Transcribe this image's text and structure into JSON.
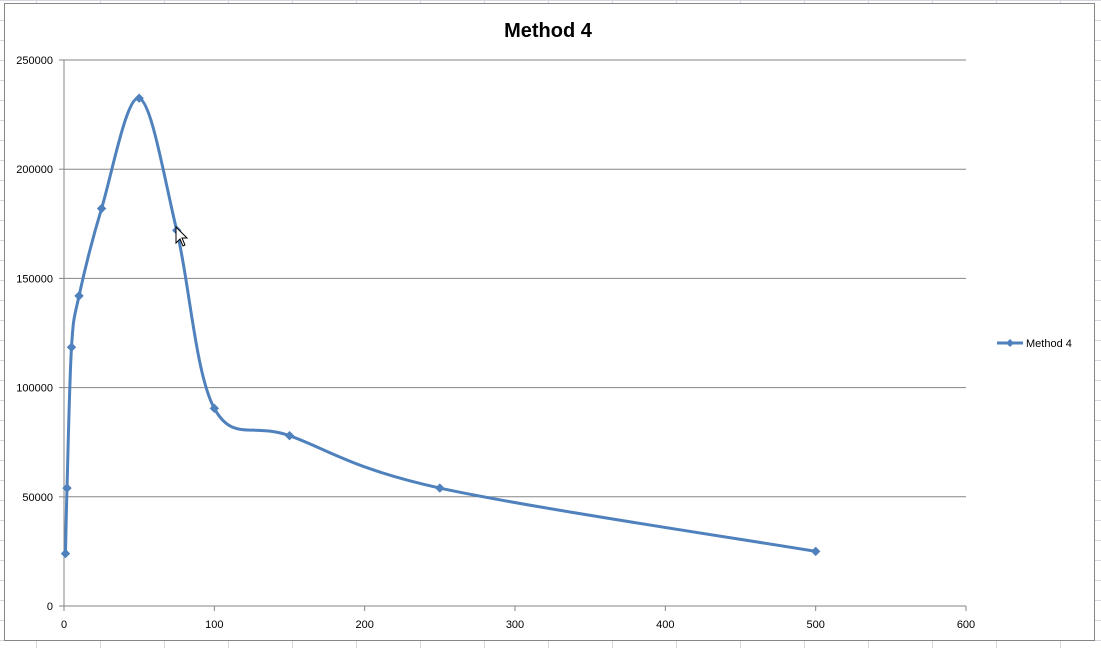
{
  "chart_data": {
    "type": "line",
    "title": "Method 4",
    "xlabel": "",
    "ylabel": "",
    "xlim": [
      0,
      600
    ],
    "ylim": [
      0,
      250000
    ],
    "x_ticks": [
      0,
      100,
      200,
      300,
      400,
      500,
      600
    ],
    "y_ticks": [
      0,
      50000,
      100000,
      150000,
      200000,
      250000
    ],
    "grid": "horizontal",
    "smoothed": true,
    "legend_position": "right",
    "series": [
      {
        "name": "Method 4",
        "color": "#4f81bd",
        "marker": "diamond",
        "x": [
          1,
          2,
          5,
          10,
          25,
          50,
          75,
          100,
          150,
          250,
          500
        ],
        "y": [
          24000,
          54000,
          118500,
          142000,
          182000,
          232500,
          172000,
          90500,
          78000,
          54000,
          25000
        ]
      }
    ]
  }
}
